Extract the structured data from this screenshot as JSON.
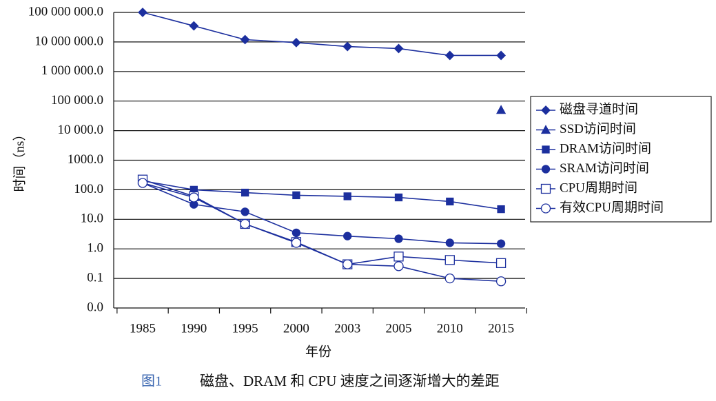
{
  "chart_data": {
    "type": "line",
    "x_label": "年份",
    "y_label": "时间（ns）",
    "caption": {
      "number": "图1",
      "text": "磁盘、DRAM 和 CPU 速度之间逐渐增大的差距"
    },
    "categories": [
      "1985",
      "1990",
      "1995",
      "2000",
      "2003",
      "2005",
      "2010",
      "2015"
    ],
    "log_scale": true,
    "grid": true,
    "legend": "right",
    "ylim": [
      0.01,
      100000000
    ],
    "yticks": [
      {
        "value": 100000000,
        "label": "100 000 000.0"
      },
      {
        "value": 10000000,
        "label": "10 000 000.0"
      },
      {
        "value": 1000000,
        "label": "1 000 000.0"
      },
      {
        "value": 100000,
        "label": "100 000.0"
      },
      {
        "value": 10000,
        "label": "10 000.0"
      },
      {
        "value": 1000,
        "label": "1000.0"
      },
      {
        "value": 100,
        "label": "100.0"
      },
      {
        "value": 10,
        "label": "10.0"
      },
      {
        "value": 1,
        "label": "1.0"
      },
      {
        "value": 0.1,
        "label": "0.1"
      },
      {
        "value": 0.01,
        "label": "0.0"
      }
    ],
    "series": [
      {
        "name": "磁盘寻道时间",
        "color": "#1c2f9e",
        "marker": "diamond",
        "values": [
          100000000,
          35000000,
          12000000,
          9500000,
          7000000,
          6000000,
          3500000,
          3500000
        ]
      },
      {
        "name": "SSD访问时间",
        "color": "#1c2f9e",
        "marker": "triangle",
        "values": [
          null,
          null,
          null,
          null,
          null,
          null,
          null,
          50000
        ]
      },
      {
        "name": "DRAM访问时间",
        "color": "#1c2f9e",
        "marker": "square",
        "values": [
          200,
          100,
          80,
          65,
          60,
          55,
          40,
          22
        ]
      },
      {
        "name": "SRAM访问时间",
        "color": "#1c2f9e",
        "marker": "circle",
        "values": [
          170,
          32,
          18,
          3.5,
          2.7,
          2.2,
          1.6,
          1.5
        ]
      },
      {
        "name": "CPU周期时间",
        "color": "#1c2f9e",
        "marker": "square-open",
        "values": [
          220,
          60,
          7,
          1.7,
          0.3,
          0.55,
          0.42,
          0.33
        ]
      },
      {
        "name": "有效CPU周期时间",
        "color": "#1c2f9e",
        "marker": "circle-open",
        "values": [
          170,
          55,
          7,
          1.6,
          0.3,
          0.26,
          0.1,
          0.08
        ]
      }
    ]
  }
}
